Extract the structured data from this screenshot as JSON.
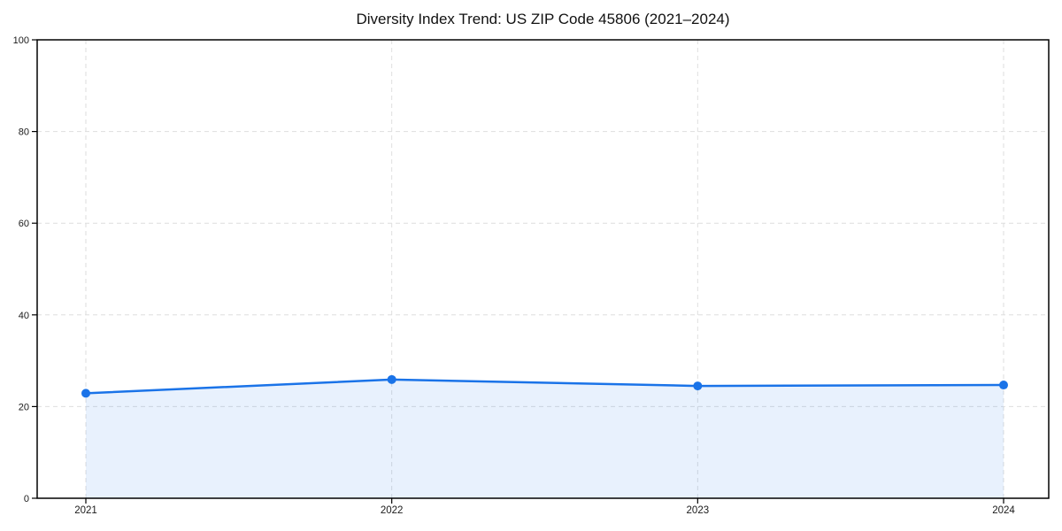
{
  "figure": {
    "background": "#ffffff"
  },
  "chart_data": {
    "type": "area",
    "title": "Diversity Index Trend: US ZIP Code 45806 (2021–2024)",
    "categories": [
      "2021",
      "2022",
      "2023",
      "2024"
    ],
    "series": [
      {
        "name": "Diversity Index",
        "values": [
          22.9,
          25.9,
          24.5,
          24.7
        ]
      }
    ],
    "xlabel": "",
    "ylabel": "",
    "ylim": [
      0,
      100
    ],
    "yticks": [
      0,
      20,
      40,
      60,
      80,
      100
    ],
    "grid": true,
    "grid_style": "dashed",
    "legend_position": "none",
    "line_color": "#1a73e8",
    "marker": "circle",
    "fill_color": "#1a73e8",
    "fill_opacity": 0.1,
    "grid_color": "#dedede",
    "frame_color": "#000000",
    "tick_label_color": "#1a1a1a"
  }
}
